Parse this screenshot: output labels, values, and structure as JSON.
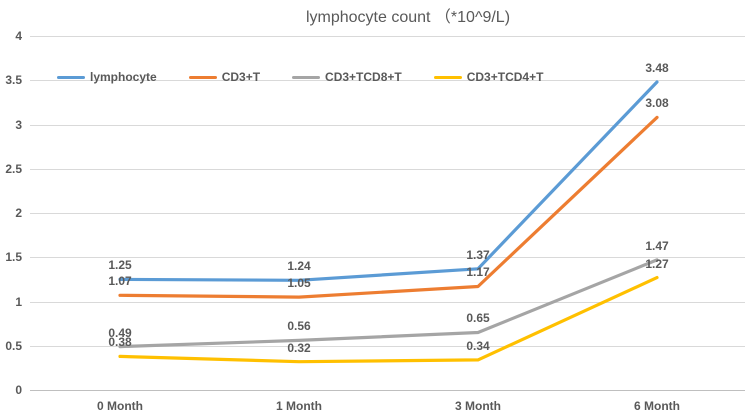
{
  "title": "lymphocyte count （*10^9/L)",
  "chart_data": {
    "type": "line",
    "title": "lymphocyte count （*10^9/L)",
    "categories": [
      "0 Month",
      "1 Month",
      "3 Month",
      "6 Month"
    ],
    "series": [
      {
        "name": "lymphocyte",
        "color": "#5b9bd5",
        "values": [
          1.25,
          1.24,
          1.37,
          3.48
        ]
      },
      {
        "name": "CD3+T",
        "color": "#ed7d31",
        "values": [
          1.07,
          1.05,
          1.17,
          3.08
        ]
      },
      {
        "name": "CD3+TCD8+T",
        "color": "#a5a5a5",
        "values": [
          0.49,
          0.56,
          0.65,
          1.47
        ]
      },
      {
        "name": "CD3+TCD4+T",
        "color": "#ffc000",
        "values": [
          0.38,
          0.32,
          0.34,
          1.27
        ]
      }
    ],
    "xlabel": "",
    "ylabel": "",
    "ylim": [
      0,
      4
    ],
    "ytick_step": 0.5,
    "yticks": [
      "0",
      "0.5",
      "1",
      "1.5",
      "2",
      "2.5",
      "3",
      "3.5",
      "4"
    ],
    "grid": true,
    "data_labels": true,
    "legend_position": "top-left-inside",
    "colors": {
      "grid": "#d9d9d9",
      "axis": "#bfbfbf",
      "text": "#595959"
    }
  }
}
